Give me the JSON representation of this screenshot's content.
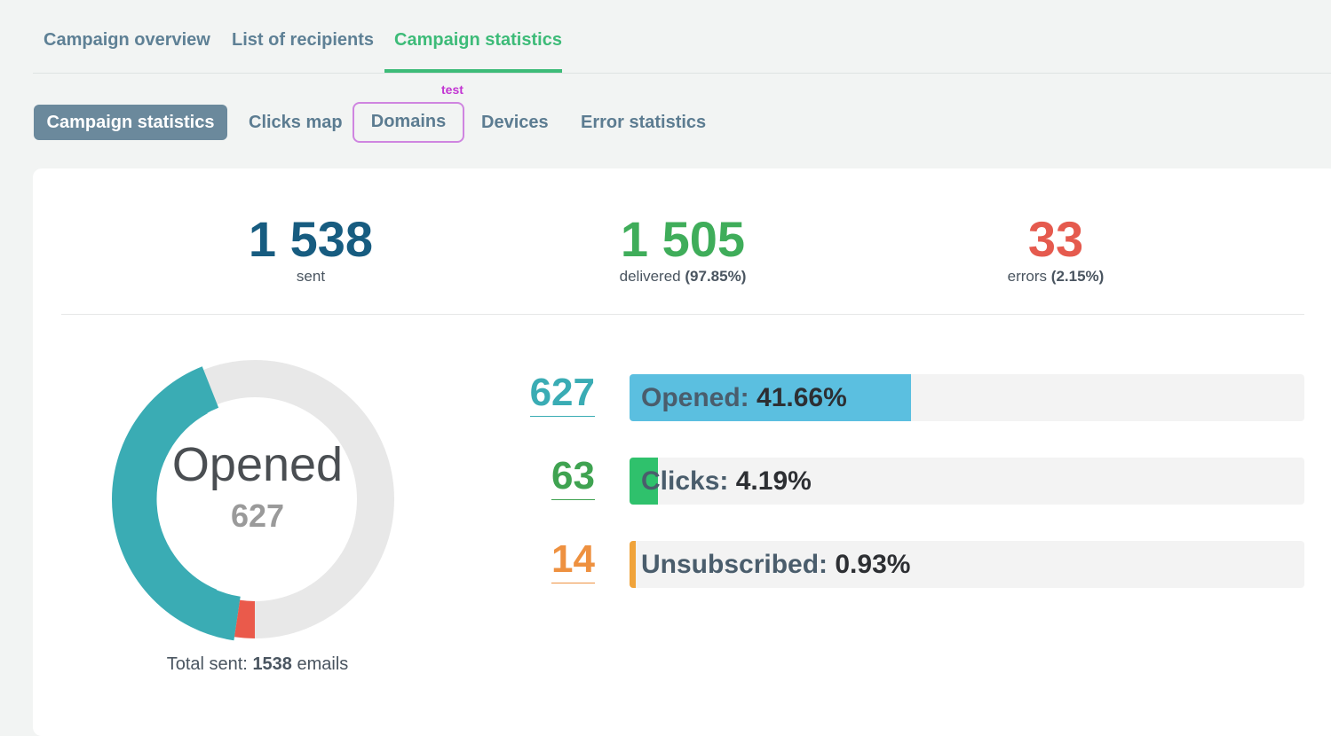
{
  "top_tabs": {
    "overview": "Campaign overview",
    "recipients": "List of recipients",
    "statistics": "Campaign statistics"
  },
  "sub_tabs": {
    "statistics": "Campaign statistics",
    "clicks_map": "Clicks map",
    "domains": "Domains",
    "devices": "Devices",
    "errors": "Error statistics",
    "badge": "test"
  },
  "summary": {
    "sent": {
      "value": "1 538",
      "label": "sent",
      "color": "#175c80"
    },
    "delivered": {
      "value": "1 505",
      "label": "delivered",
      "pct": "(97.85%)",
      "color": "#3fad5a"
    },
    "errors": {
      "value": "33",
      "label": "errors",
      "pct": "(2.15%)",
      "color": "#e55a4e"
    }
  },
  "donut": {
    "title": "Opened",
    "value": "627",
    "opened_fraction": 0.4166,
    "error_fraction": 0.0215,
    "colors": {
      "opened": "#3aacb4",
      "error": "#ea5a4b",
      "rest": "#e8e8e8"
    },
    "total_prefix": "Total sent:",
    "total_value": "1538",
    "total_suffix": "emails"
  },
  "metrics": [
    {
      "count": "627",
      "label": "Opened:",
      "pct": "41.66%",
      "fraction": 0.4166,
      "color": "#3aacb4",
      "bar_color": "#5bbfe0"
    },
    {
      "count": "63",
      "label": "Clicks:",
      "pct": "4.19%",
      "fraction": 0.0419,
      "color": "#3fa351",
      "bar_color": "#2fc16c"
    },
    {
      "count": "14",
      "label": "Unsubscribed:",
      "pct": "0.93%",
      "fraction": 0.0093,
      "color": "#ee9140",
      "bar_color": "#f0a33a"
    }
  ]
}
